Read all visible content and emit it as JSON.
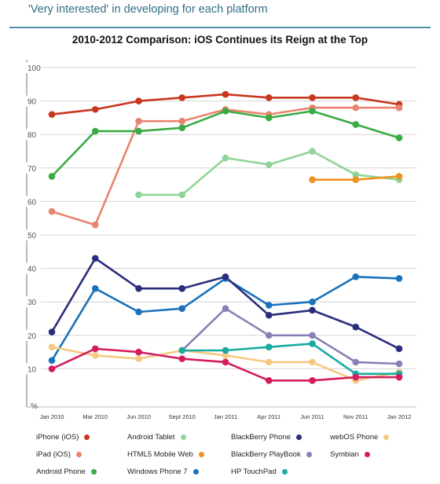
{
  "subtitle": "'Very interested' in developing for each platform",
  "chart_data": {
    "type": "line",
    "title": "2010-2012 Comparison: iOS Continues its Reign at the Top",
    "ylabel": "%",
    "ylim": [
      0,
      100
    ],
    "yticks": [
      10,
      20,
      30,
      40,
      50,
      60,
      70,
      80,
      90,
      100
    ],
    "grid": true,
    "legend_position": "bottom",
    "categories": [
      "Jan 2010",
      "Mar 2010",
      "Jun 2010",
      "Sept 2010",
      "Jan 2011",
      "Apr 2011",
      "Jun 2011",
      "Nov 2011",
      "Jan 2012"
    ],
    "series": [
      {
        "name": "iPhone (iOS)",
        "color": "#c8361f",
        "values": [
          86,
          87.5,
          90,
          91,
          92,
          91,
          91,
          91,
          89
        ]
      },
      {
        "name": "iPad (iOS)",
        "color": "#e88470",
        "values": [
          57,
          53,
          84,
          84,
          87.5,
          86,
          88,
          88,
          88
        ]
      },
      {
        "name": "Android Phone",
        "color": "#3aab43",
        "values": [
          67.5,
          81,
          81,
          82,
          87,
          85,
          87,
          83,
          79
        ]
      },
      {
        "name": "Android Tablet",
        "color": "#8fd498",
        "values": [
          null,
          null,
          62,
          62,
          73,
          71,
          75,
          68,
          66.5
        ]
      },
      {
        "name": "HTML5 Mobile Web",
        "color": "#ee9420",
        "values": [
          null,
          null,
          null,
          null,
          null,
          null,
          66.5,
          66.5,
          67.5
        ]
      },
      {
        "name": "Windows Phone 7",
        "color": "#1a72ba",
        "values": [
          12.5,
          34,
          27,
          28,
          37,
          29,
          30,
          37.5,
          37
        ]
      },
      {
        "name": "BlackBerry Phone",
        "color": "#2b2d7c",
        "values": [
          21,
          43,
          34,
          34,
          37.5,
          26,
          27.5,
          22.5,
          16
        ]
      },
      {
        "name": "BlackBerry PlayBook",
        "color": "#8880b5",
        "values": [
          null,
          null,
          null,
          15.5,
          28,
          20,
          20,
          12,
          11.5
        ]
      },
      {
        "name": "webOS Phone",
        "color": "#f5c980",
        "values": [
          16.5,
          14,
          13,
          15.5,
          14,
          12,
          12,
          6.5,
          9
        ]
      },
      {
        "name": "HP TouchPad",
        "color": "#19aaa0",
        "values": [
          null,
          null,
          null,
          15.5,
          15.5,
          16.5,
          17.5,
          8.5,
          8.5
        ]
      },
      {
        "name": "Symbian",
        "color": "#d41c5e",
        "values": [
          10,
          16,
          15,
          13,
          12,
          6.5,
          6.5,
          7.5,
          7.5
        ]
      }
    ]
  }
}
